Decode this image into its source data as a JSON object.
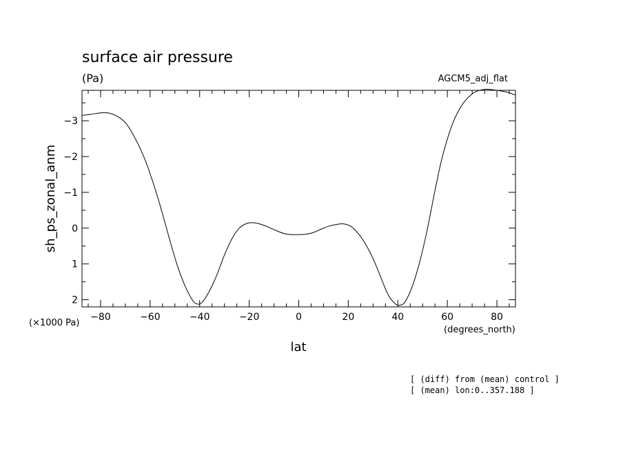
{
  "title": "surface air pressure",
  "units_label": "(Pa)",
  "model_label": "AGCM5_adj_flat",
  "chart_data": {
    "type": "line",
    "xlabel": "lat",
    "ylabel": "sh_ps_zonal_anm",
    "x_units": "(degrees_north)",
    "y_units": "(×1000 Pa)",
    "xlim": [
      -87.5,
      87.5
    ],
    "ylim": [
      2.2,
      -3.85
    ],
    "x_ticks": [
      -80,
      -60,
      -40,
      -20,
      0,
      20,
      40,
      60,
      80
    ],
    "x_tick_labels": [
      "−80",
      "−60",
      "−40",
      "−20",
      "0",
      "20",
      "40",
      "60",
      "80"
    ],
    "y_ticks": [
      -3,
      -2,
      -1,
      0,
      1,
      2
    ],
    "y_tick_labels": [
      "−3",
      "−2",
      "−1",
      "0",
      "1",
      "2"
    ],
    "series": [
      {
        "x": [
          -87.5,
          -84,
          -80,
          -77,
          -74,
          -70,
          -66,
          -62,
          -58,
          -55,
          -52,
          -49,
          -46,
          -43,
          -41,
          -39,
          -36,
          -33,
          -30,
          -27,
          -24,
          -21,
          -18,
          -15,
          -12,
          -9,
          -6,
          -3,
          0,
          3,
          6,
          9,
          12,
          15,
          18,
          21,
          24,
          27,
          30,
          33,
          36,
          39,
          41,
          43,
          46,
          49,
          52,
          55,
          58,
          62,
          66,
          70,
          73,
          76,
          80,
          84,
          87.5
        ],
        "y": [
          -3.15,
          -3.18,
          -3.22,
          -3.22,
          -3.15,
          -2.95,
          -2.5,
          -1.9,
          -1.1,
          -0.4,
          0.35,
          1.05,
          1.6,
          2.0,
          2.12,
          2.07,
          1.75,
          1.3,
          0.75,
          0.3,
          0.0,
          -0.13,
          -0.15,
          -0.1,
          -0.02,
          0.07,
          0.15,
          0.18,
          0.18,
          0.17,
          0.12,
          0.03,
          -0.05,
          -0.1,
          -0.12,
          -0.05,
          0.15,
          0.45,
          0.85,
          1.35,
          1.85,
          2.12,
          2.15,
          2.05,
          1.6,
          0.9,
          0.0,
          -1.05,
          -2.0,
          -2.9,
          -3.45,
          -3.75,
          -3.85,
          -3.88,
          -3.85,
          -3.8,
          -3.72
        ]
      }
    ],
    "grid": false,
    "legend": "none"
  },
  "footnotes": [
    "[ (diff) from (mean) control ]",
    "[ (mean) lon:0..357.188 ]"
  ]
}
